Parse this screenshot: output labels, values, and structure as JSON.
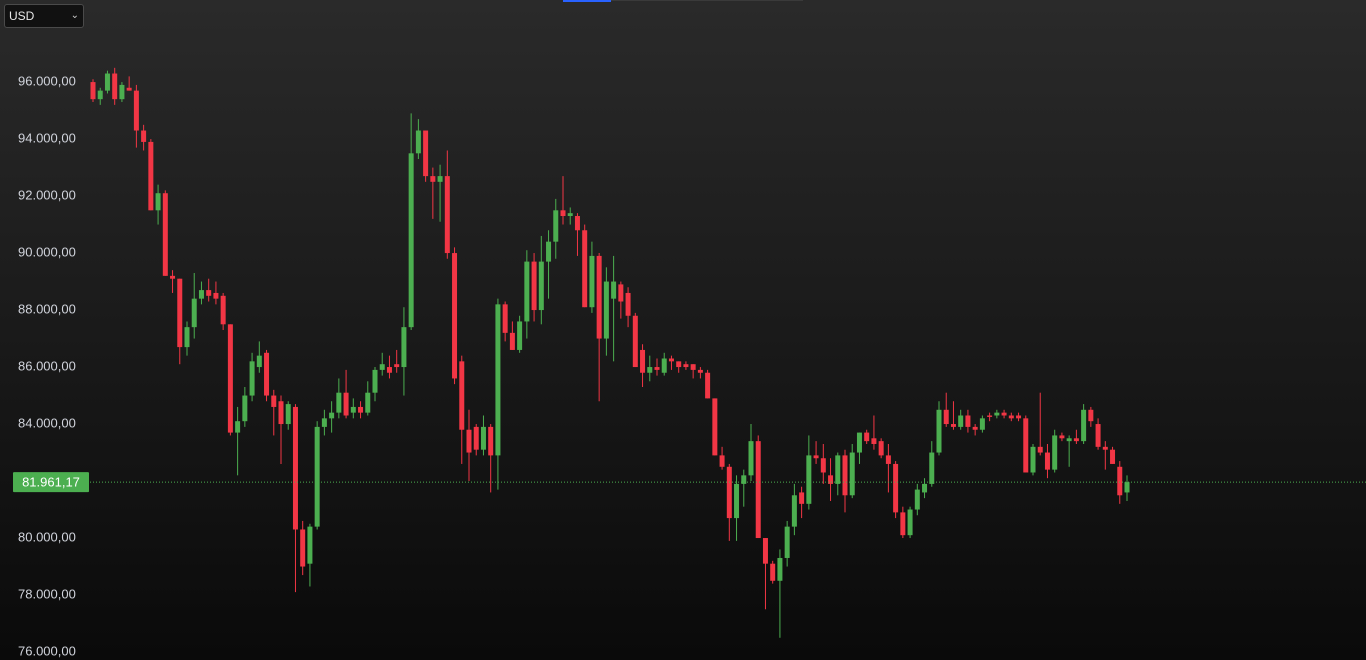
{
  "currency_selector": "USD",
  "chart_data": {
    "type": "candlestick",
    "up_color": "#4caf50",
    "down_color": "#f23645",
    "ylim": [
      75720,
      98880
    ],
    "yticks": [
      {
        "value": 76000,
        "label": "76.000,00"
      },
      {
        "value": 78000,
        "label": "78.000,00"
      },
      {
        "value": 80000,
        "label": "80.000,00"
      },
      {
        "value": 82000,
        "label": "82.000,00"
      },
      {
        "value": 84000,
        "label": "84.000,00"
      },
      {
        "value": 86000,
        "label": "86.000,00"
      },
      {
        "value": 88000,
        "label": "88.000,00"
      },
      {
        "value": 90000,
        "label": "90.000,00"
      },
      {
        "value": 92000,
        "label": "92.000,00"
      },
      {
        "value": 94000,
        "label": "94.000,00"
      },
      {
        "value": 96000,
        "label": "96.000,00"
      }
    ],
    "last_price": 81961.17,
    "last_price_label": "81.961,17",
    "candles": [
      [
        96000,
        96100,
        95300,
        95400
      ],
      [
        95400,
        95800,
        95200,
        95700
      ],
      [
        95700,
        96400,
        95600,
        96300
      ],
      [
        96300,
        96500,
        95200,
        95400
      ],
      [
        95400,
        96000,
        95300,
        95900
      ],
      [
        95800,
        96200,
        95700,
        95700
      ],
      [
        95700,
        95900,
        93700,
        94300
      ],
      [
        94300,
        94500,
        93600,
        93900
      ],
      [
        93900,
        94000,
        91500,
        91500
      ],
      [
        91500,
        92400,
        91000,
        92100
      ],
      [
        92100,
        92200,
        89200,
        89200
      ],
      [
        89200,
        89400,
        88600,
        89100
      ],
      [
        89100,
        89100,
        86100,
        86700
      ],
      [
        86700,
        87600,
        86400,
        87400
      ],
      [
        87400,
        89300,
        87000,
        88400
      ],
      [
        88400,
        89000,
        88200,
        88700
      ],
      [
        88700,
        89100,
        88300,
        88500
      ],
      [
        88600,
        89000,
        88200,
        88400
      ],
      [
        88500,
        88600,
        87300,
        87500
      ],
      [
        87500,
        87500,
        83600,
        83700
      ],
      [
        83700,
        84600,
        82200,
        84100
      ],
      [
        84100,
        85300,
        83900,
        85000
      ],
      [
        85000,
        86500,
        84800,
        86200
      ],
      [
        86000,
        86900,
        85800,
        86400
      ],
      [
        86500,
        86600,
        84800,
        85000
      ],
      [
        85000,
        85200,
        83600,
        84600
      ],
      [
        84800,
        85000,
        82600,
        84000
      ],
      [
        84000,
        84800,
        83800,
        84700
      ],
      [
        84600,
        84700,
        78100,
        80300
      ],
      [
        80300,
        80600,
        78700,
        79000
      ],
      [
        79100,
        80500,
        78300,
        80400
      ],
      [
        80400,
        84100,
        80300,
        83900
      ],
      [
        83900,
        84500,
        83600,
        84200
      ],
      [
        84200,
        84800,
        83700,
        84400
      ],
      [
        84400,
        85600,
        84200,
        85100
      ],
      [
        85100,
        85900,
        84200,
        84300
      ],
      [
        84400,
        84900,
        84200,
        84600
      ],
      [
        84600,
        84800,
        84200,
        84400
      ],
      [
        84400,
        85500,
        84300,
        85100
      ],
      [
        85100,
        86000,
        84800,
        85900
      ],
      [
        85900,
        86500,
        85700,
        86100
      ],
      [
        86000,
        86400,
        85600,
        85800
      ],
      [
        86100,
        86600,
        85800,
        86000
      ],
      [
        86000,
        88100,
        85000,
        87400
      ],
      [
        87400,
        94900,
        87300,
        93500
      ],
      [
        93500,
        94700,
        93300,
        94300
      ],
      [
        94300,
        94300,
        92500,
        92700
      ],
      [
        92700,
        93000,
        91200,
        92500
      ],
      [
        92500,
        93100,
        91100,
        92700
      ],
      [
        92700,
        93600,
        89800,
        90000
      ],
      [
        90000,
        90200,
        85400,
        85600
      ],
      [
        86200,
        86400,
        82600,
        83800
      ],
      [
        83800,
        84500,
        82000,
        83000
      ],
      [
        83900,
        84000,
        82900,
        83100
      ],
      [
        83100,
        84300,
        82900,
        83900
      ],
      [
        83900,
        84000,
        81600,
        82900
      ],
      [
        82900,
        88400,
        81700,
        88200
      ],
      [
        88200,
        88300,
        86900,
        87200
      ],
      [
        87200,
        87600,
        86600,
        86600
      ],
      [
        86600,
        87800,
        86500,
        87600
      ],
      [
        87600,
        90100,
        87000,
        89700
      ],
      [
        89700,
        90000,
        87600,
        88000
      ],
      [
        88000,
        90600,
        87500,
        89700
      ],
      [
        89700,
        90800,
        88400,
        90400
      ],
      [
        90400,
        91900,
        89800,
        91500
      ],
      [
        91500,
        92700,
        91000,
        91300
      ],
      [
        91300,
        91600,
        91000,
        91400
      ],
      [
        91300,
        91400,
        89900,
        90800
      ],
      [
        90800,
        91000,
        88100,
        88100
      ],
      [
        88100,
        90400,
        87900,
        89900
      ],
      [
        89900,
        90000,
        84800,
        87000
      ],
      [
        87000,
        89500,
        86400,
        89000
      ],
      [
        88400,
        89900,
        86200,
        89000
      ],
      [
        88900,
        89000,
        87700,
        88300
      ],
      [
        88600,
        88800,
        87400,
        87800
      ],
      [
        87800,
        87900,
        86000,
        86000
      ],
      [
        86600,
        86800,
        85300,
        85800
      ],
      [
        85800,
        86400,
        85500,
        86000
      ],
      [
        86000,
        86300,
        85700,
        85900
      ],
      [
        85800,
        86500,
        85700,
        86300
      ],
      [
        86300,
        86400,
        85900,
        86200
      ],
      [
        86200,
        86200,
        85800,
        86000
      ],
      [
        86100,
        86200,
        85900,
        86000
      ],
      [
        86100,
        86100,
        85600,
        85900
      ],
      [
        85900,
        86000,
        85600,
        85800
      ],
      [
        85800,
        85900,
        84900,
        84900
      ],
      [
        84900,
        84900,
        82900,
        82900
      ],
      [
        82900,
        83200,
        82400,
        82500
      ],
      [
        82500,
        82600,
        79900,
        80700
      ],
      [
        80700,
        82200,
        79900,
        81900
      ],
      [
        81900,
        82400,
        81100,
        82200
      ],
      [
        82200,
        84000,
        82000,
        83400
      ],
      [
        83400,
        83600,
        80000,
        80000
      ],
      [
        80000,
        80000,
        77500,
        79100
      ],
      [
        79100,
        79200,
        78400,
        78500
      ],
      [
        78500,
        79600,
        76500,
        79300
      ],
      [
        79300,
        80600,
        79000,
        80400
      ],
      [
        80400,
        81900,
        80100,
        81500
      ],
      [
        81600,
        81800,
        80700,
        81200
      ],
      [
        81200,
        83600,
        81000,
        82900
      ],
      [
        82900,
        83400,
        82600,
        82800
      ],
      [
        82800,
        83300,
        81900,
        82300
      ],
      [
        82200,
        82800,
        81300,
        81900
      ],
      [
        81900,
        83000,
        81500,
        82900
      ],
      [
        82900,
        83100,
        80900,
        81500
      ],
      [
        81500,
        83300,
        81400,
        83000
      ],
      [
        83000,
        83700,
        82600,
        83700
      ],
      [
        83700,
        83800,
        83300,
        83400
      ],
      [
        83500,
        84300,
        83100,
        83300
      ],
      [
        83400,
        83500,
        82800,
        82900
      ],
      [
        82900,
        83300,
        81600,
        82600
      ],
      [
        82600,
        82700,
        80700,
        80900
      ],
      [
        80900,
        81100,
        80000,
        80100
      ],
      [
        80100,
        81100,
        80000,
        81000
      ],
      [
        81000,
        81900,
        80800,
        81700
      ],
      [
        81600,
        82100,
        81400,
        81900
      ],
      [
        81900,
        83400,
        81800,
        83000
      ],
      [
        83000,
        84800,
        82900,
        84500
      ],
      [
        84500,
        85100,
        83900,
        84000
      ],
      [
        84000,
        84800,
        83800,
        83900
      ],
      [
        83900,
        84500,
        83800,
        84300
      ],
      [
        84300,
        84500,
        83700,
        83900
      ],
      [
        83900,
        84000,
        83600,
        83800
      ],
      [
        83800,
        84300,
        83700,
        84200
      ],
      [
        84300,
        84400,
        84100,
        84250
      ],
      [
        84300,
        84500,
        84200,
        84400
      ],
      [
        84400,
        84500,
        84200,
        84300
      ],
      [
        84300,
        84400,
        84100,
        84200
      ],
      [
        84300,
        84400,
        84100,
        84200
      ],
      [
        84200,
        84300,
        82300,
        82300
      ],
      [
        82300,
        83300,
        82200,
        83200
      ],
      [
        83200,
        85100,
        82900,
        83000
      ],
      [
        83000,
        83300,
        82100,
        82400
      ],
      [
        82400,
        83800,
        82300,
        83600
      ],
      [
        83600,
        83700,
        83400,
        83500
      ],
      [
        83400,
        83600,
        82500,
        83500
      ],
      [
        83500,
        83800,
        83300,
        83400
      ],
      [
        83400,
        84700,
        83300,
        84500
      ],
      [
        84500,
        84600,
        83900,
        84100
      ],
      [
        84000,
        84200,
        83100,
        83200
      ],
      [
        83200,
        83400,
        82400,
        83100
      ],
      [
        83100,
        83200,
        82600,
        82600
      ],
      [
        82500,
        82700,
        81200,
        81500
      ],
      [
        81600,
        82200,
        81300,
        81961.17
      ]
    ]
  }
}
